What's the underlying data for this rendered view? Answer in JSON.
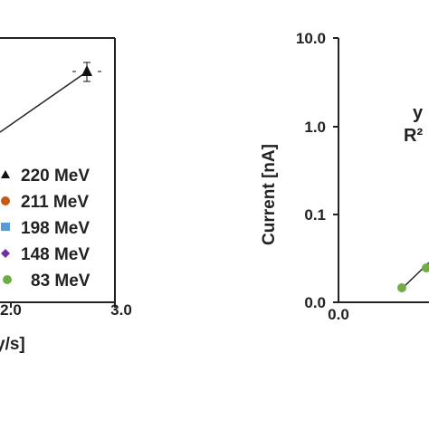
{
  "chart_data": [
    {
      "type": "scatter",
      "title": "",
      "xlabel": "y/s]",
      "x_ticks": [
        "2.0",
        "3.0"
      ],
      "series": [
        {
          "name": "220 MeV",
          "color": "#111111",
          "marker": "triangle",
          "points": [
            [
              2.7,
              1.0
            ]
          ]
        },
        {
          "name": "211 MeV",
          "color": "#c55a11",
          "marker": "circle",
          "points": []
        },
        {
          "name": "198 MeV",
          "color": "#5b9bd5",
          "marker": "square",
          "points": []
        },
        {
          "name": "148 MeV",
          "color": "#7030a0",
          "marker": "diamond",
          "points": []
        },
        {
          "name": "83 MeV",
          "color": "#70ad47",
          "marker": "circle",
          "points": []
        }
      ],
      "legend_position": "right"
    },
    {
      "type": "scatter",
      "title": "",
      "xlabel": "",
      "ylabel": "Current [nA]",
      "y_scale": "log",
      "y_ticks": [
        "10.0",
        "1.0",
        "0.1",
        "0.0"
      ],
      "x_ticks": [
        "0.0"
      ],
      "series": [
        {
          "name": "",
          "color": "#70ad47",
          "marker": "circle",
          "points": [
            [
              0.45,
              0.016
            ],
            [
              0.62,
              0.026
            ]
          ]
        }
      ],
      "annotations": [
        "y",
        "R²"
      ]
    }
  ]
}
